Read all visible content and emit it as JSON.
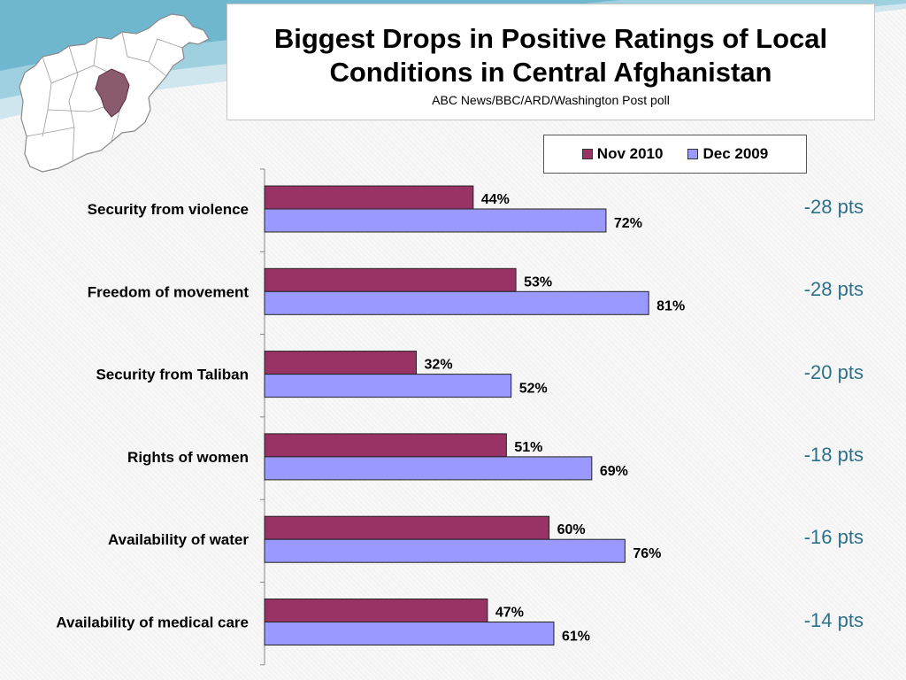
{
  "chart_data": {
    "type": "bar",
    "orientation": "horizontal",
    "title": "Biggest Drops in Positive Ratings of Local\nConditions in Central Afghanistan",
    "subtitle": "ABC News/BBC/ARD/Washington Post poll",
    "categories": [
      "Security from violence",
      "Freedom of movement",
      "Security from Taliban",
      "Rights of women",
      "Availability of water",
      "Availability of medical care"
    ],
    "series": [
      {
        "name": "Nov 2010",
        "color": "#993366",
        "values": [
          44,
          53,
          32,
          51,
          60,
          47
        ],
        "labels": [
          "44%",
          "53%",
          "32%",
          "51%",
          "60%",
          "47%"
        ]
      },
      {
        "name": "Dec 2009",
        "color": "#9999ff",
        "values": [
          72,
          81,
          52,
          69,
          76,
          61
        ],
        "labels": [
          "72%",
          "81%",
          "52%",
          "69%",
          "76%",
          "61%"
        ]
      }
    ],
    "changes": [
      "-28 pts",
      "-28 pts",
      "-20 pts",
      "-18 pts",
      "-16 pts",
      "-14 pts"
    ],
    "xlim": [
      0,
      100
    ],
    "legend_position": "top-right"
  }
}
